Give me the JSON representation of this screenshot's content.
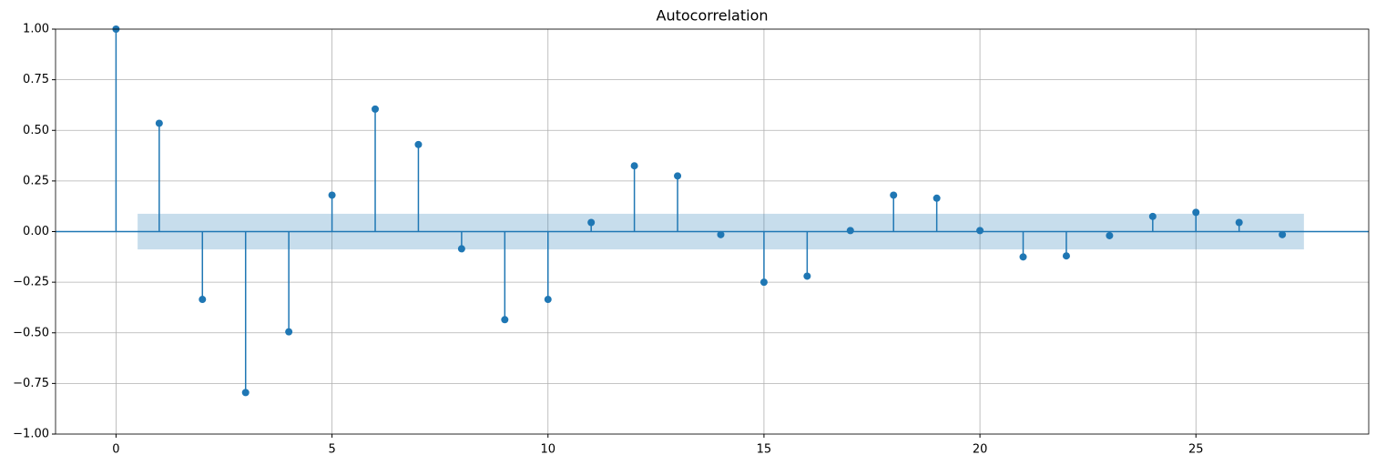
{
  "chart_data": {
    "type": "stem",
    "title": "Autocorrelation",
    "x": [
      0,
      1,
      2,
      3,
      4,
      5,
      6,
      7,
      8,
      9,
      10,
      11,
      12,
      13,
      14,
      15,
      16,
      17,
      18,
      19,
      20,
      21,
      22,
      23,
      24,
      25,
      26,
      27
    ],
    "values": [
      1.0,
      0.535,
      -0.335,
      -0.795,
      -0.495,
      0.18,
      0.605,
      0.43,
      -0.085,
      -0.435,
      -0.335,
      0.045,
      0.325,
      0.275,
      -0.015,
      -0.25,
      -0.22,
      0.005,
      0.18,
      0.165,
      0.005,
      -0.125,
      -0.12,
      -0.02,
      0.075,
      0.095,
      0.045,
      -0.015
    ],
    "color": "#1f77b4",
    "hline": 0,
    "confidence_band": {
      "xlim": [
        0.5,
        27.5
      ],
      "upper": 0.088,
      "lower": -0.088
    },
    "xlim": [
      -1.4,
      29
    ],
    "ylim": [
      -1,
      1
    ],
    "xticks": [
      0,
      5,
      10,
      15,
      20,
      25
    ],
    "yticks": [
      {
        "value": -1,
        "label": "−1.00"
      },
      {
        "value": -0.75,
        "label": "−0.75"
      },
      {
        "value": -0.5,
        "label": "−0.50"
      },
      {
        "value": -0.25,
        "label": "−0.25"
      },
      {
        "value": 0,
        "label": "0.00"
      },
      {
        "value": 0.25,
        "label": "0.25"
      },
      {
        "value": 0.5,
        "label": "0.50"
      },
      {
        "value": 0.75,
        "label": "0.75"
      },
      {
        "value": 1,
        "label": "1.00"
      }
    ],
    "grid": true
  }
}
